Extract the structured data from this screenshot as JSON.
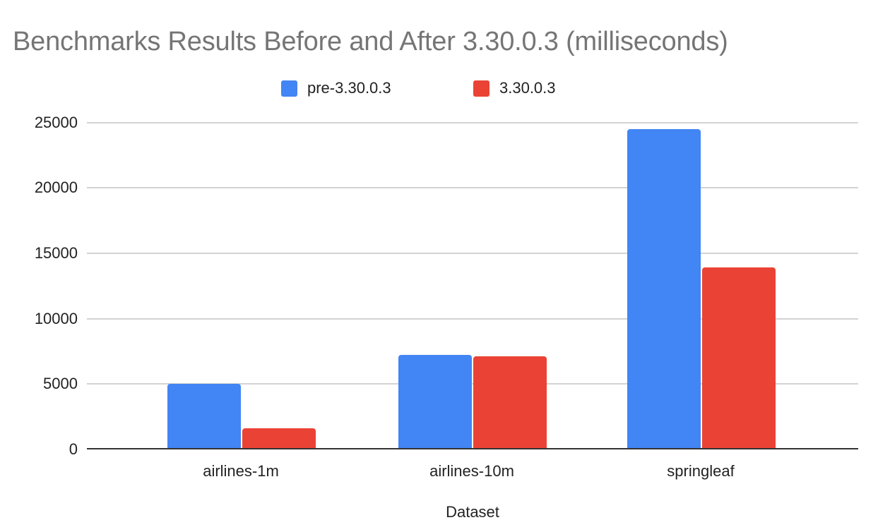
{
  "chart_data": {
    "type": "bar",
    "title": "Benchmarks Results Before and After 3.30.0.3 (milliseconds)",
    "xlabel": "Dataset",
    "ylabel": "",
    "categories": [
      "airlines-1m",
      "airlines-10m",
      "springleaf"
    ],
    "series": [
      {
        "name": "pre-3.30.0.3",
        "color": "#4285F4",
        "values": [
          4950,
          7180,
          24460
        ]
      },
      {
        "name": "3.30.0.3",
        "color": "#EA4335",
        "values": [
          1570,
          7070,
          13880
        ]
      }
    ],
    "ylim": [
      0,
      25000
    ],
    "yticks": [
      "0",
      "5000",
      "10000",
      "15000",
      "20000",
      "25000"
    ],
    "grid": true,
    "legend_position": "top"
  },
  "legend": [
    {
      "label": "pre-3.30.0.3",
      "color": "#4285F4"
    },
    {
      "label": "3.30.0.3",
      "color": "#EA4335"
    }
  ]
}
